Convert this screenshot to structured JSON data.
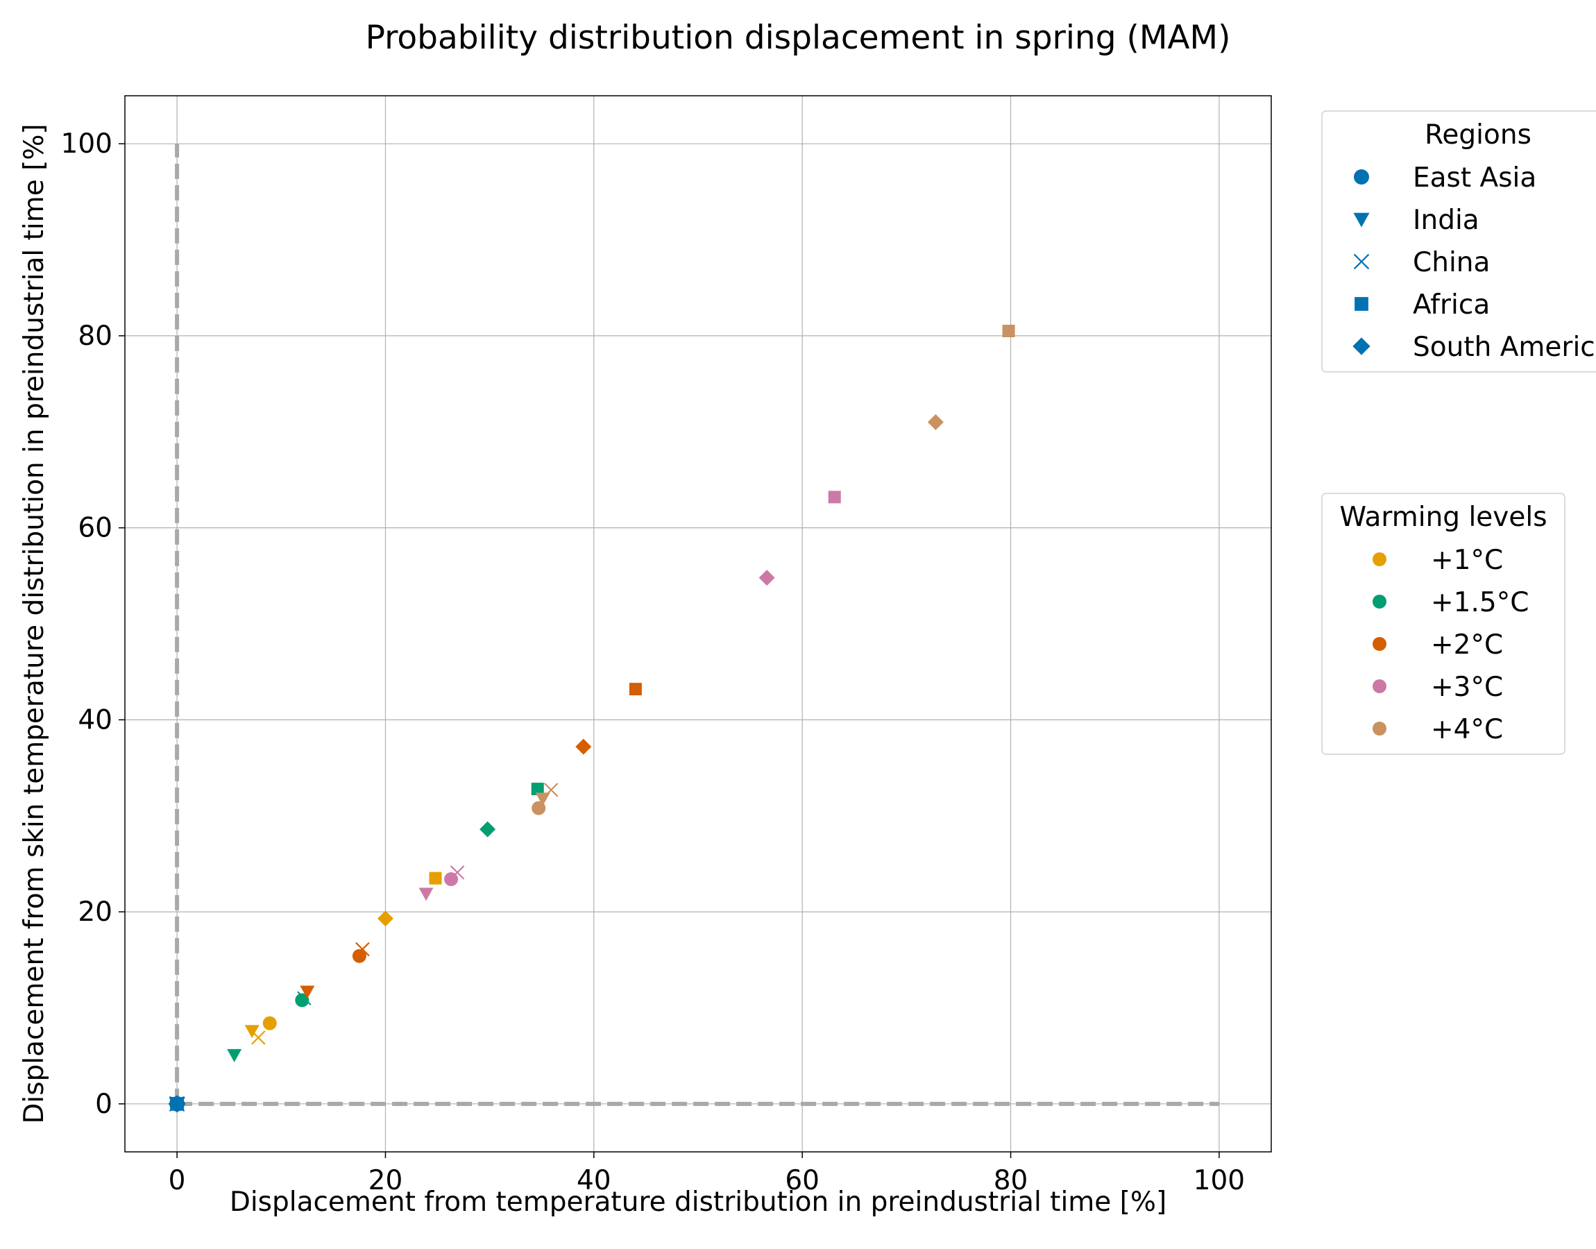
{
  "chart_data": {
    "type": "scatter",
    "title": "Probability distribution displacement in spring (MAM)",
    "xlabel": "Displacement from temperature distribution in preindustrial time [%]",
    "ylabel": "Displacement from skin temperature distribution in preindustrial time [%]",
    "xlim": [
      -5,
      105
    ],
    "ylim": [
      -5,
      105
    ],
    "xticks": [
      "0",
      "20",
      "40",
      "60",
      "80",
      "100"
    ],
    "yticks": [
      "0",
      "20",
      "40",
      "60",
      "80",
      "100"
    ],
    "grid": true,
    "reference_lines": [
      {
        "style": "dashed",
        "color": "#a9a9a9",
        "points": [
          [
            0,
            0
          ],
          [
            0,
            100
          ]
        ]
      },
      {
        "style": "dashed",
        "color": "#a9a9a9",
        "points": [
          [
            0,
            0
          ],
          [
            100,
            0
          ]
        ]
      }
    ],
    "regions_legend": {
      "title": "Regions",
      "placement": "upper-right-outside",
      "color": "#0072b2",
      "items": [
        {
          "name": "East Asia",
          "marker": "circle"
        },
        {
          "name": "India",
          "marker": "triangle-down"
        },
        {
          "name": "China",
          "marker": "x"
        },
        {
          "name": "Africa",
          "marker": "square"
        },
        {
          "name": "South America",
          "marker": "diamond"
        }
      ]
    },
    "warming_legend": {
      "title": "Warming levels",
      "placement": "middle-right-outside",
      "items": [
        {
          "name": "+1°C",
          "color": "#e69f00"
        },
        {
          "name": "+1.5°C",
          "color": "#009e73"
        },
        {
          "name": "+2°C",
          "color": "#d55e00"
        },
        {
          "name": "+3°C",
          "color": "#cc79a7"
        },
        {
          "name": "+4°C",
          "color": "#ca9161"
        }
      ]
    },
    "baseline_points": [
      {
        "marker": "circle",
        "color": "#0072b2",
        "x": 0,
        "y": 0
      },
      {
        "marker": "triangle-down",
        "color": "#0072b2",
        "x": 0,
        "y": 0
      },
      {
        "marker": "x",
        "color": "#0072b2",
        "x": 0,
        "y": 0
      },
      {
        "marker": "square",
        "color": "#0072b2",
        "x": 0,
        "y": 0
      },
      {
        "marker": "diamond",
        "color": "#0072b2",
        "x": 0,
        "y": 0
      }
    ],
    "series": [
      {
        "warming": "+1°C",
        "color": "#e69f00",
        "points": [
          {
            "region": "East Asia",
            "marker": "circle",
            "x": 8.9,
            "y": 8.4
          },
          {
            "region": "India",
            "marker": "triangle-down",
            "x": 7.2,
            "y": 7.6
          },
          {
            "region": "China",
            "marker": "x",
            "x": 7.8,
            "y": 6.9
          },
          {
            "region": "Africa",
            "marker": "square",
            "x": 24.8,
            "y": 23.5
          },
          {
            "region": "South America",
            "marker": "diamond",
            "x": 20.0,
            "y": 19.3
          }
        ]
      },
      {
        "warming": "+1.5°C",
        "color": "#009e73",
        "points": [
          {
            "region": "East Asia",
            "marker": "circle",
            "x": 12.0,
            "y": 10.8
          },
          {
            "region": "India",
            "marker": "triangle-down",
            "x": 5.5,
            "y": 5.1
          },
          {
            "region": "China",
            "marker": "x",
            "x": 12.2,
            "y": 11.0
          },
          {
            "region": "Africa",
            "marker": "square",
            "x": 34.6,
            "y": 32.8
          },
          {
            "region": "South America",
            "marker": "diamond",
            "x": 29.8,
            "y": 28.6
          }
        ]
      },
      {
        "warming": "+2°C",
        "color": "#d55e00",
        "points": [
          {
            "region": "East Asia",
            "marker": "circle",
            "x": 17.5,
            "y": 15.4
          },
          {
            "region": "India",
            "marker": "triangle-down",
            "x": 12.5,
            "y": 11.7
          },
          {
            "region": "China",
            "marker": "x",
            "x": 17.8,
            "y": 16.1
          },
          {
            "region": "Africa",
            "marker": "square",
            "x": 44.0,
            "y": 43.2
          },
          {
            "region": "South America",
            "marker": "diamond",
            "x": 39.0,
            "y": 37.2
          }
        ]
      },
      {
        "warming": "+3°C",
        "color": "#cc79a7",
        "points": [
          {
            "region": "East Asia",
            "marker": "circle",
            "x": 26.3,
            "y": 23.4
          },
          {
            "region": "India",
            "marker": "triangle-down",
            "x": 23.9,
            "y": 21.9
          },
          {
            "region": "China",
            "marker": "x",
            "x": 26.9,
            "y": 24.1
          },
          {
            "region": "Africa",
            "marker": "square",
            "x": 63.1,
            "y": 63.2
          },
          {
            "region": "South America",
            "marker": "diamond",
            "x": 56.6,
            "y": 54.8
          }
        ]
      },
      {
        "warming": "+4°C",
        "color": "#ca9161",
        "points": [
          {
            "region": "East Asia",
            "marker": "circle",
            "x": 34.7,
            "y": 30.8
          },
          {
            "region": "India",
            "marker": "triangle-down",
            "x": 35.1,
            "y": 31.8
          },
          {
            "region": "China",
            "marker": "x",
            "x": 35.9,
            "y": 32.7
          },
          {
            "region": "Africa",
            "marker": "square",
            "x": 79.8,
            "y": 80.5
          },
          {
            "region": "South America",
            "marker": "diamond",
            "x": 72.8,
            "y": 71.0
          }
        ]
      }
    ]
  }
}
